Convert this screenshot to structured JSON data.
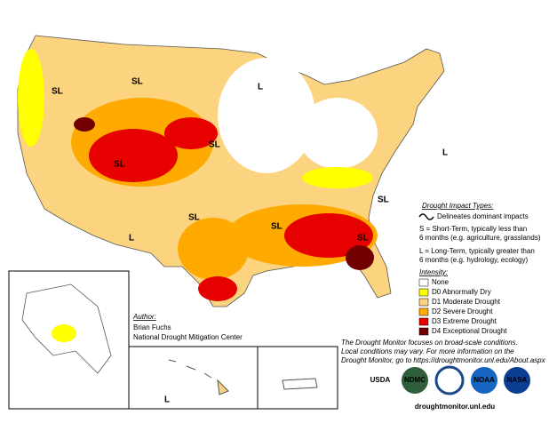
{
  "impact_types": {
    "title": "Drought Impact Types:",
    "line_note": "Delineates dominant impacts",
    "short_term": [
      "S = Short-Term, typically less than",
      "6 months (e.g. agriculture, grasslands)"
    ],
    "long_term": [
      "L = Long-Term, typically greater than",
      "6 months (e.g. hydrology, ecology)"
    ]
  },
  "intensity": {
    "title": "Intensity:",
    "items": [
      {
        "label": "None",
        "color": "#ffffff"
      },
      {
        "label": "D0 Abnormally Dry",
        "color": "#ffff00"
      },
      {
        "label": "D1 Moderate Drought",
        "color": "#fcd37f"
      },
      {
        "label": "D2 Severe Drought",
        "color": "#ffaa00"
      },
      {
        "label": "D3 Extreme Drought",
        "color": "#e60000"
      },
      {
        "label": "D4 Exceptional Drought",
        "color": "#730000"
      }
    ]
  },
  "author": {
    "title": "Author:",
    "name": "Brian Fuchs",
    "org": "National Drought Mitigation Center"
  },
  "disclaimer": [
    "The Drought Monitor focuses on broad-scale conditions.",
    "Local conditions may vary. For more information on the",
    "Drought Monitor, go to https://droughtmonitor.unl.edu/About.aspx"
  ],
  "logos": [
    "USDA",
    "NDMC",
    "NOAA",
    "NASA"
  ],
  "website": "droughtmonitor.unl.edu",
  "map_labels": [
    "SL",
    "SL",
    "L",
    "SL",
    "SL",
    "SL",
    "SL",
    "SL",
    "SL",
    "L",
    "L",
    "L"
  ]
}
